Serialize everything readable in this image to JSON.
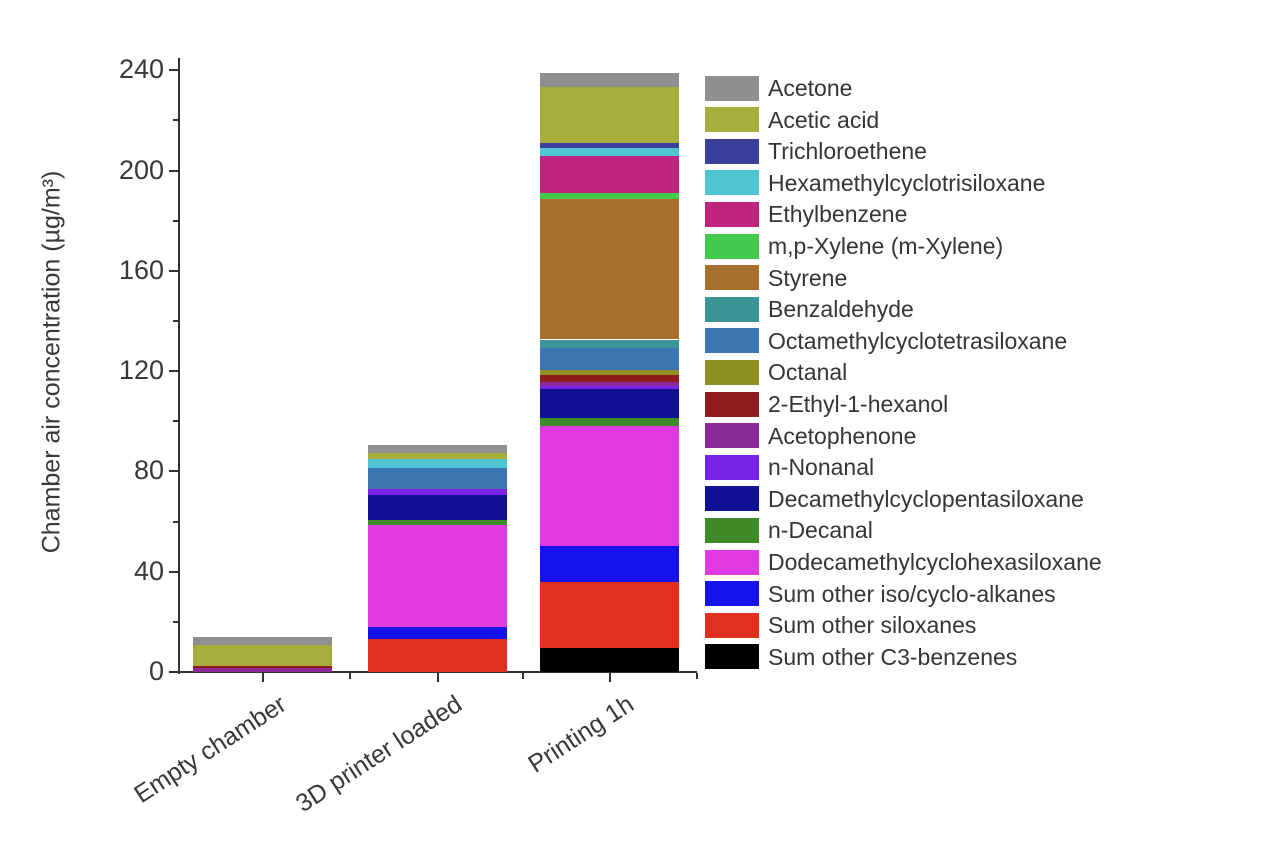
{
  "chart_data": {
    "type": "bar",
    "stacked": true,
    "title": "",
    "xlabel": "",
    "ylabel": "Chamber air concentration (µg/m³)",
    "categories": [
      "Empty chamber",
      "3D printer loaded",
      "Printing 1h"
    ],
    "ylim": [
      0,
      244
    ],
    "y_major_ticks": [
      0,
      40,
      80,
      120,
      160,
      200,
      240
    ],
    "y_minor_ticks": [
      20,
      60,
      100,
      140,
      180,
      220
    ],
    "grid": false,
    "legend_position": "right",
    "units": "µg/m³",
    "stack_totals_estimated": [
      13.8,
      90.4,
      238.8
    ],
    "series": [
      {
        "name": "Acetone",
        "color": "#8f8f8f",
        "values": [
          3.2,
          3.2,
          5.4
        ]
      },
      {
        "name": "Acetic acid",
        "color": "#a6ad3a",
        "values": [
          8.4,
          2.4,
          22.4
        ]
      },
      {
        "name": "Trichloroethene",
        "color": "#3a3f9e",
        "values": [
          0,
          0,
          2.0
        ]
      },
      {
        "name": "Hexamethylcyclotrisiloxane",
        "color": "#4ec5d1",
        "values": [
          0,
          3.6,
          3.4
        ]
      },
      {
        "name": "Ethylbenzene",
        "color": "#c1247e",
        "values": [
          0,
          0,
          14.6
        ]
      },
      {
        "name": "m,p-Xylene (m-Xylene)",
        "color": "#44cb4e",
        "values": [
          0,
          0,
          2.4
        ]
      },
      {
        "name": "Styrene",
        "color": "#a8702d",
        "values": [
          0,
          0,
          56.0
        ]
      },
      {
        "name": "Benzaldehyde",
        "color": "#3b9496",
        "values": [
          0,
          0,
          3.2
        ]
      },
      {
        "name": "Octamethylcyclotetrasiloxane",
        "color": "#3d74b2",
        "values": [
          0,
          8.4,
          8.8
        ]
      },
      {
        "name": "Octanal",
        "color": "#8f8f23",
        "values": [
          0,
          0,
          2.0
        ]
      },
      {
        "name": "2-Ethyl-1-hexanol",
        "color": "#8e1c1c",
        "values": [
          0.8,
          0,
          3.0
        ]
      },
      {
        "name": "Acetophenone",
        "color": "#8c2a9c",
        "values": [
          1.4,
          0,
          1.4
        ]
      },
      {
        "name": "n-Nonanal",
        "color": "#7a24ea",
        "values": [
          0,
          2.4,
          1.4
        ]
      },
      {
        "name": "Decamethylcyclopentasiloxane",
        "color": "#101094",
        "values": [
          0,
          9.6,
          11.6
        ]
      },
      {
        "name": "n-Decanal",
        "color": "#3e8a28",
        "values": [
          0,
          2.0,
          3.0
        ]
      },
      {
        "name": "Dodecamethylcyclohexasiloxane",
        "color": "#e23ae2",
        "values": [
          0,
          40.8,
          48.0
        ]
      },
      {
        "name": "Sum other iso/cyclo-alkanes",
        "color": "#1414ea",
        "values": [
          0,
          4.8,
          14.2
        ]
      },
      {
        "name": "Sum other siloxanes",
        "color": "#e0301f",
        "values": [
          0,
          13.2,
          26.6
        ]
      },
      {
        "name": "Sum other C3-benzenes",
        "color": "#000000",
        "values": [
          0,
          0,
          9.4
        ]
      }
    ]
  }
}
